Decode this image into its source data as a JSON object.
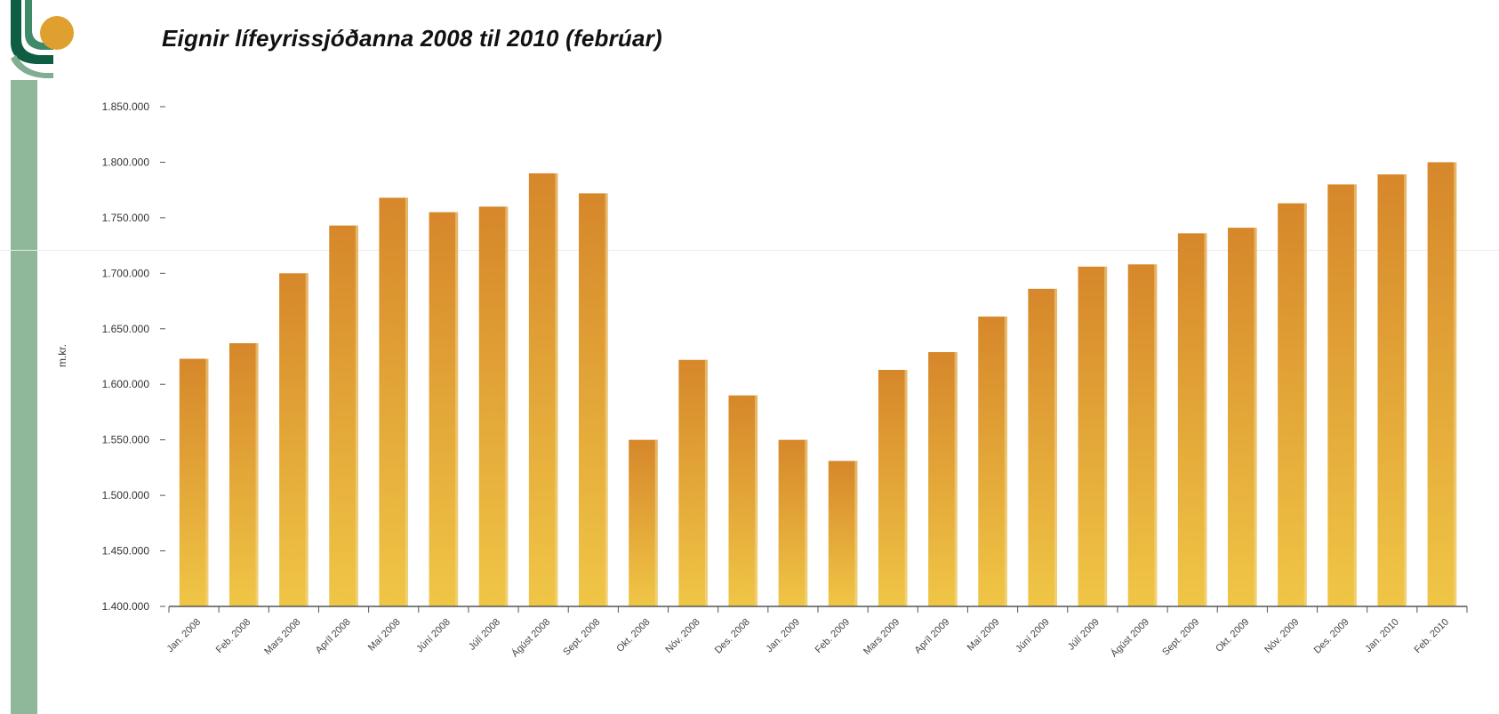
{
  "title": "Eignir lífeyrissjóðanna 2008 til 2010 (febrúar)",
  "colors": {
    "bar_top": "#d6872a",
    "bar_bottom": "#f0c646",
    "logo_green": "#0f5e44",
    "logo_orange": "#e0a030",
    "band_green": "#8fb79a"
  },
  "chart_data": {
    "type": "bar",
    "title": "Eignir lífeyrissjóðanna 2008 til 2010 (febrúar)",
    "ylabel": "m.kr.",
    "xlabel": "",
    "ylim": [
      1400000,
      1850000
    ],
    "yticks": [
      "1.400.000",
      "1.450.000",
      "1.500.000",
      "1.550.000",
      "1.600.000",
      "1.650.000",
      "1.700.000",
      "1.750.000",
      "1.800.000",
      "1.850.000"
    ],
    "categories": [
      "Jan. 2008",
      "Feb. 2008",
      "Mars 2008",
      "Apríl 2008",
      "Maí 2008",
      "Júní 2008",
      "Júlí 2008",
      "Ágúst 2008",
      "Sept. 2008",
      "Okt. 2008",
      "Nóv. 2008",
      "Des. 2008",
      "Jan. 2009",
      "Feb. 2009",
      "Mars 2009",
      "Apríl 2009",
      "Maí 2009",
      "Júní 2009",
      "Júlí 2009",
      "Ágúst 2009",
      "Sept. 2009",
      "Okt. 2009",
      "Nóv. 2009",
      "Des. 2009",
      "Jan. 2010",
      "Feb. 2010"
    ],
    "values": [
      1623000,
      1637000,
      1700000,
      1743000,
      1768000,
      1755000,
      1760000,
      1790000,
      1772000,
      1550000,
      1622000,
      1590000,
      1550000,
      1531000,
      1613000,
      1629000,
      1661000,
      1686000,
      1706000,
      1708000,
      1736000,
      1741000,
      1763000,
      1780000,
      1789000,
      1800000
    ],
    "grid": false,
    "legend": "none"
  }
}
